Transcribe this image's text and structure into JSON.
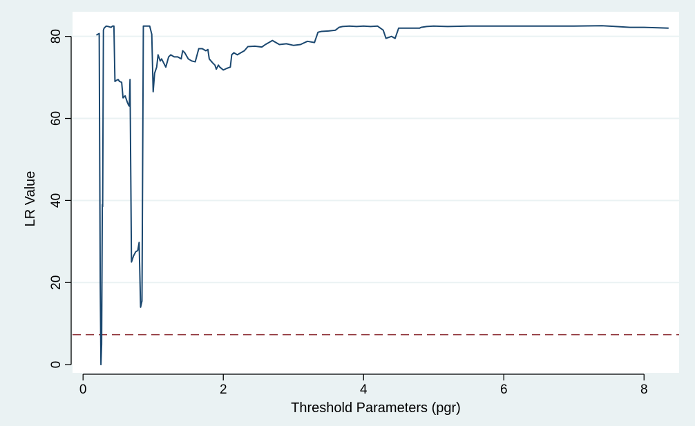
{
  "chart_data": {
    "type": "line",
    "xlabel": "Threshold Parameters (pgr)",
    "ylabel": "LR Value",
    "xlim": [
      -0.15,
      8.5
    ],
    "ylim": [
      -2,
      86
    ],
    "x_ticks": [
      0,
      2,
      4,
      6,
      8
    ],
    "y_ticks": [
      0,
      20,
      40,
      60,
      80
    ],
    "grid": "horizontal",
    "colors": {
      "background_outer": "#eaf2f3",
      "plot_area": "#ffffff",
      "gridline": "#eaf2f3",
      "series_line": "#1a476f",
      "threshold_line": "#90353b"
    },
    "series": [
      {
        "values": [
          [
            0.19,
            80.3
          ],
          [
            0.23,
            80.7
          ],
          [
            0.235,
            60.0
          ],
          [
            0.245,
            20.0
          ],
          [
            0.255,
            0.0
          ],
          [
            0.265,
            5.0
          ],
          [
            0.275,
            39.0
          ],
          [
            0.28,
            38.5
          ],
          [
            0.29,
            81.5
          ],
          [
            0.3,
            82.0
          ],
          [
            0.33,
            82.5
          ],
          [
            0.36,
            82.4
          ],
          [
            0.4,
            82.2
          ],
          [
            0.42,
            82.5
          ],
          [
            0.44,
            82.5
          ],
          [
            0.455,
            69.0
          ],
          [
            0.47,
            69.2
          ],
          [
            0.5,
            69.5
          ],
          [
            0.52,
            69.0
          ],
          [
            0.55,
            68.8
          ],
          [
            0.57,
            65.0
          ],
          [
            0.6,
            65.5
          ],
          [
            0.63,
            64.0
          ],
          [
            0.65,
            63.2
          ],
          [
            0.66,
            63.0
          ],
          [
            0.67,
            69.5
          ],
          [
            0.69,
            25.0
          ],
          [
            0.72,
            26.5
          ],
          [
            0.75,
            27.5
          ],
          [
            0.78,
            27.8
          ],
          [
            0.8,
            29.8
          ],
          [
            0.82,
            14.0
          ],
          [
            0.84,
            15.5
          ],
          [
            0.86,
            82.5
          ],
          [
            0.9,
            82.5
          ],
          [
            0.95,
            82.5
          ],
          [
            0.98,
            80.5
          ],
          [
            1.0,
            66.5
          ],
          [
            1.02,
            71.0
          ],
          [
            1.05,
            72.5
          ],
          [
            1.07,
            75.5
          ],
          [
            1.1,
            74.0
          ],
          [
            1.12,
            74.5
          ],
          [
            1.15,
            73.5
          ],
          [
            1.18,
            72.5
          ],
          [
            1.22,
            75.0
          ],
          [
            1.25,
            75.5
          ],
          [
            1.3,
            75.0
          ],
          [
            1.35,
            75.0
          ],
          [
            1.4,
            74.5
          ],
          [
            1.42,
            76.5
          ],
          [
            1.45,
            76.0
          ],
          [
            1.5,
            74.5
          ],
          [
            1.55,
            74.0
          ],
          [
            1.6,
            73.8
          ],
          [
            1.65,
            77.0
          ],
          [
            1.7,
            77.0
          ],
          [
            1.75,
            76.5
          ],
          [
            1.78,
            76.8
          ],
          [
            1.8,
            74.5
          ],
          [
            1.85,
            73.5
          ],
          [
            1.88,
            73.0
          ],
          [
            1.9,
            72.0
          ],
          [
            1.93,
            73.0
          ],
          [
            1.95,
            72.5
          ],
          [
            2.0,
            71.8
          ],
          [
            2.05,
            72.2
          ],
          [
            2.1,
            72.5
          ],
          [
            2.12,
            75.5
          ],
          [
            2.15,
            76.0
          ],
          [
            2.2,
            75.5
          ],
          [
            2.25,
            76.0
          ],
          [
            2.3,
            76.5
          ],
          [
            2.35,
            77.5
          ],
          [
            2.45,
            77.6
          ],
          [
            2.55,
            77.4
          ],
          [
            2.6,
            78.0
          ],
          [
            2.65,
            78.5
          ],
          [
            2.7,
            79.0
          ],
          [
            2.75,
            78.5
          ],
          [
            2.8,
            78.0
          ],
          [
            2.9,
            78.2
          ],
          [
            3.0,
            77.8
          ],
          [
            3.1,
            78.0
          ],
          [
            3.2,
            78.8
          ],
          [
            3.3,
            78.5
          ],
          [
            3.35,
            81.0
          ],
          [
            3.4,
            81.2
          ],
          [
            3.5,
            81.3
          ],
          [
            3.6,
            81.5
          ],
          [
            3.65,
            82.2
          ],
          [
            3.7,
            82.4
          ],
          [
            3.8,
            82.5
          ],
          [
            3.9,
            82.4
          ],
          [
            4.0,
            82.5
          ],
          [
            4.1,
            82.4
          ],
          [
            4.2,
            82.5
          ],
          [
            4.28,
            81.5
          ],
          [
            4.32,
            79.5
          ],
          [
            4.4,
            80.0
          ],
          [
            4.45,
            79.5
          ],
          [
            4.48,
            81.0
          ],
          [
            4.5,
            82.0
          ],
          [
            4.6,
            82.0
          ],
          [
            4.8,
            82.0
          ],
          [
            4.82,
            82.2
          ],
          [
            4.9,
            82.4
          ],
          [
            5.0,
            82.5
          ],
          [
            5.2,
            82.4
          ],
          [
            5.5,
            82.5
          ],
          [
            6.0,
            82.5
          ],
          [
            6.5,
            82.5
          ],
          [
            7.0,
            82.5
          ],
          [
            7.4,
            82.6
          ],
          [
            7.6,
            82.4
          ],
          [
            7.8,
            82.2
          ],
          [
            8.0,
            82.2
          ],
          [
            8.2,
            82.1
          ],
          [
            8.35,
            82.0
          ]
        ]
      }
    ],
    "threshold_value": 7.3
  }
}
